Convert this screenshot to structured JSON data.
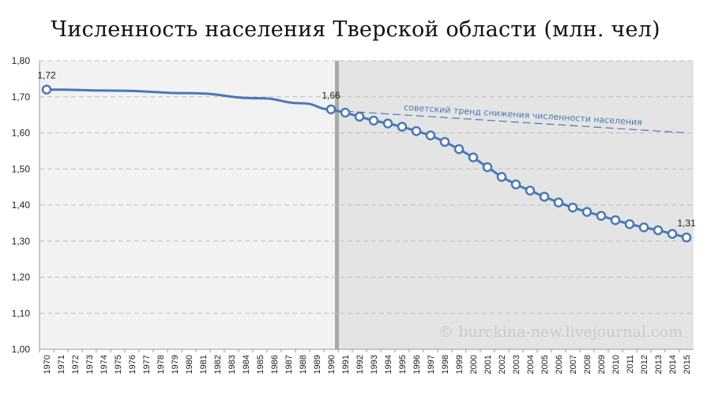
{
  "chart_data": {
    "type": "line",
    "title": "Численность населения Тверской области (млн. чел)",
    "xlabel": "",
    "ylabel": "",
    "ylim": [
      1.0,
      1.8
    ],
    "y_ticks": [
      "1,00",
      "1,10",
      "1,20",
      "1,30",
      "1,40",
      "1,50",
      "1,60",
      "1,70",
      "1,80"
    ],
    "grid": true,
    "categories": [
      "1970",
      "1971",
      "1972",
      "1973",
      "1974",
      "1975",
      "1976",
      "1977",
      "1978",
      "1979",
      "1980",
      "1981",
      "1982",
      "1983",
      "1984",
      "1985",
      "1986",
      "1987",
      "1988",
      "1989",
      "1990",
      "1991",
      "1992",
      "1993",
      "1994",
      "1995",
      "1996",
      "1997",
      "1998",
      "1999",
      "2000",
      "2001",
      "2002",
      "2003",
      "2004",
      "2005",
      "2006",
      "2007",
      "2008",
      "2009",
      "2010",
      "2011",
      "2012",
      "2013",
      "2014",
      "2015"
    ],
    "series": [
      {
        "values": [
          1.72,
          null,
          null,
          null,
          null,
          null,
          null,
          null,
          null,
          null,
          null,
          null,
          null,
          null,
          null,
          null,
          null,
          null,
          null,
          null,
          1.665,
          1.656,
          1.645,
          1.634,
          1.626,
          1.617,
          1.605,
          1.593,
          1.575,
          1.555,
          1.532,
          1.505,
          1.478,
          1.457,
          1.44,
          1.423,
          1.407,
          1.393,
          1.381,
          1.37,
          1.358,
          1.347,
          1.338,
          1.33,
          1.32,
          1.31
        ],
        "color": "#4a78b5"
      }
    ],
    "soviet_curve": {
      "x": [
        "1970",
        "1975",
        "1980",
        "1985",
        "1988",
        "1990"
      ],
      "values": [
        1.72,
        1.717,
        1.71,
        1.696,
        1.682,
        1.665
      ]
    },
    "trend_line": {
      "x": [
        "1991",
        "2015"
      ],
      "values": [
        1.66,
        1.6
      ],
      "label": "советский тренд снижения численности населения",
      "color": "#4a78b5"
    },
    "data_labels": [
      {
        "x": "1970",
        "text": "1,72"
      },
      {
        "x": "1990",
        "text": "1,66"
      },
      {
        "x": "2015",
        "text": "1,31"
      }
    ],
    "shaded_region_from": "1991",
    "watermark": "© burckina-new.livejournal.com"
  }
}
